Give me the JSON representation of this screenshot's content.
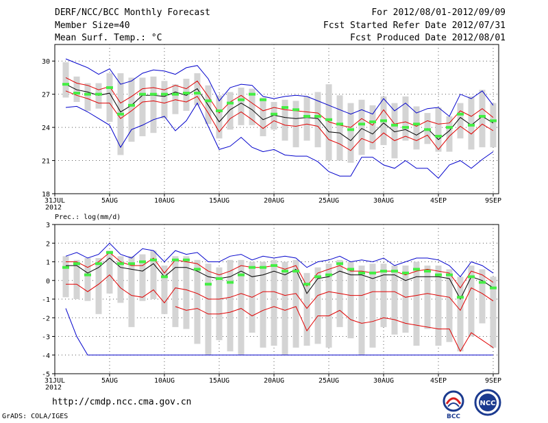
{
  "header": {
    "title": "DERF/NCC/BCC Monthly Forecast",
    "member": "Member Size=40",
    "variable": "Mean Surf. Temp.: °C",
    "period": "For 2012/08/01-2012/09/09",
    "started": "Fcst Started Refer Date 2012/07/31",
    "produced": "Fcst Produced Date 2012/08/01"
  },
  "footer": {
    "url": "http://cmdp.ncc.cma.gov.cn",
    "credit": "GrADS: COLA/IGES"
  },
  "logos": {
    "bcc": "BCC",
    "ncc": "NCC"
  },
  "colors": {
    "ensemble_mean": "#000000",
    "spread": "#e00000",
    "extreme": "#0000cc",
    "box": "#d4d4d4",
    "median": "#44ee44",
    "grid": "#555555"
  },
  "chart_data": [
    {
      "type": "line",
      "title": "Mean Surf. Temp.: °C",
      "xlabel": "",
      "ylabel": "",
      "x_ticks": [
        {
          "day": 0,
          "label": "31JUL",
          "sub": "2012"
        },
        {
          "day": 5,
          "label": "5AUG"
        },
        {
          "day": 10,
          "label": "10AUG"
        },
        {
          "day": 15,
          "label": "15AUG"
        },
        {
          "day": 20,
          "label": "20AUG"
        },
        {
          "day": 25,
          "label": "25AUG"
        },
        {
          "day": 30,
          "label": "30AUG"
        },
        {
          "day": 35,
          "label": "4SEP"
        },
        {
          "day": 40,
          "label": "9SEP"
        }
      ],
      "y_ticks": [
        18,
        21,
        24,
        27,
        30
      ],
      "ylim": [
        18,
        31.5
      ],
      "xlim": [
        0,
        40.5
      ],
      "days": [
        1,
        2,
        3,
        4,
        5,
        6,
        7,
        8,
        9,
        10,
        11,
        12,
        13,
        14,
        15,
        16,
        17,
        18,
        19,
        20,
        21,
        22,
        23,
        24,
        25,
        26,
        27,
        28,
        29,
        30,
        31,
        32,
        33,
        34,
        35,
        36,
        37,
        38,
        39,
        40
      ],
      "series": [
        {
          "name": "Max",
          "color": "#0000cc",
          "values": [
            30.2,
            29.8,
            29.4,
            28.8,
            29.3,
            27.9,
            28.2,
            28.9,
            29.2,
            29.1,
            28.8,
            29.4,
            29.6,
            28.4,
            26.4,
            27.6,
            27.9,
            27.8,
            26.8,
            26.6,
            26.8,
            26.9,
            26.8,
            26.4,
            26.0,
            25.6,
            25.2,
            25.6,
            25.2,
            26.6,
            25.5,
            26.2,
            25.3,
            25.7,
            25.8,
            25.0,
            27.0,
            26.6,
            27.3,
            26.0
          ]
        },
        {
          "name": "Upper",
          "color": "#e00000",
          "values": [
            28.5,
            28.0,
            27.8,
            27.4,
            27.7,
            26.2,
            26.8,
            27.5,
            27.6,
            27.4,
            27.8,
            27.5,
            28.2,
            26.8,
            25.3,
            26.3,
            26.9,
            26.2,
            25.5,
            25.8,
            25.6,
            25.5,
            25.4,
            25.3,
            24.5,
            24.2,
            24.0,
            24.8,
            24.2,
            25.6,
            24.3,
            24.5,
            24.1,
            24.6,
            24.3,
            24.4,
            25.5,
            25.0,
            25.7,
            24.9
          ]
        },
        {
          "name": "Mean",
          "color": "#000000",
          "values": [
            27.9,
            27.4,
            27.2,
            26.9,
            27.1,
            25.4,
            26.0,
            26.9,
            26.9,
            26.8,
            27.2,
            26.9,
            27.5,
            26.0,
            24.5,
            25.6,
            26.2,
            25.6,
            24.7,
            25.1,
            24.9,
            24.8,
            24.9,
            24.8,
            23.6,
            23.5,
            22.8,
            23.9,
            23.4,
            24.4,
            23.6,
            23.8,
            23.3,
            23.9,
            22.9,
            23.7,
            24.9,
            24.2,
            25.0,
            24.4
          ]
        },
        {
          "name": "Lower",
          "color": "#e00000",
          "values": [
            27.3,
            26.9,
            26.6,
            26.2,
            26.2,
            24.8,
            25.5,
            26.3,
            26.4,
            26.2,
            26.5,
            26.3,
            26.8,
            25.3,
            23.6,
            24.8,
            25.4,
            24.7,
            23.9,
            24.6,
            24.2,
            24.1,
            24.3,
            24.1,
            22.9,
            22.5,
            21.9,
            23.0,
            22.6,
            23.5,
            22.8,
            23.2,
            22.8,
            23.3,
            22.0,
            23.2,
            24.1,
            23.4,
            24.3,
            23.7
          ]
        },
        {
          "name": "Min",
          "color": "#0000cc",
          "values": [
            25.8,
            25.9,
            25.4,
            24.8,
            24.2,
            22.2,
            23.8,
            24.2,
            24.7,
            25.0,
            23.7,
            24.6,
            26.2,
            24.1,
            22.0,
            22.3,
            23.1,
            22.2,
            21.8,
            22.0,
            21.5,
            21.4,
            21.4,
            20.9,
            20.0,
            19.6,
            19.6,
            21.3,
            21.3,
            20.6,
            20.3,
            21.0,
            20.3,
            20.3,
            19.4,
            20.6,
            21.0,
            20.3,
            21.1,
            21.8
          ]
        },
        {
          "name": "Median",
          "color": "#44ee44",
          "values": [
            27.9,
            27.1,
            27.0,
            27.0,
            27.6,
            25.2,
            26.0,
            27.0,
            27.0,
            27.0,
            27.0,
            27.1,
            27.1,
            26.4,
            25.5,
            26.2,
            26.5,
            27.0,
            26.5,
            25.2,
            25.8,
            25.6,
            25.0,
            25.0,
            24.7,
            24.3,
            23.8,
            24.3,
            24.5,
            24.6,
            24.2,
            24.0,
            24.3,
            23.8,
            23.2,
            24.0,
            25.2,
            24.2,
            25.0,
            24.6
          ]
        }
      ],
      "box_upper": [
        29.9,
        28.6,
        28.0,
        28.0,
        28.9,
        28.9,
        28.5,
        28.5,
        28.6,
        28.2,
        27.9,
        28.4,
        28.9,
        27.8,
        26.9,
        27.2,
        27.6,
        27.5,
        26.7,
        26.3,
        26.5,
        26.4,
        26.8,
        27.2,
        27.9,
        26.9,
        26.2,
        26.5,
        26.0,
        26.8,
        26.2,
        26.8,
        25.9,
        25.3,
        25.8,
        25.0,
        26.2,
        26.8,
        27.4,
        26.2
      ],
      "box_lower": [
        26.7,
        26.3,
        25.5,
        25.7,
        24.5,
        21.5,
        22.7,
        23.2,
        23.5,
        24.8,
        25.2,
        25.5,
        26.0,
        24.3,
        23.0,
        23.8,
        24.2,
        24.2,
        23.2,
        23.8,
        22.8,
        22.2,
        22.8,
        22.2,
        21.0,
        21.0,
        20.8,
        21.5,
        22.0,
        22.4,
        21.2,
        22.8,
        22.0,
        22.5,
        21.8,
        21.8,
        23.0,
        22.0,
        22.2,
        22.2
      ]
    },
    {
      "type": "line",
      "title": "Prec.: log(mm/d)",
      "xlabel": "",
      "ylabel": "",
      "x_ticks": [
        {
          "day": 0,
          "label": "31JUL",
          "sub": "2012"
        },
        {
          "day": 5,
          "label": "5AUG"
        },
        {
          "day": 10,
          "label": "10AUG"
        },
        {
          "day": 15,
          "label": "15AUG"
        },
        {
          "day": 20,
          "label": "20AUG"
        },
        {
          "day": 25,
          "label": "25AUG"
        },
        {
          "day": 30,
          "label": "30AUG"
        },
        {
          "day": 35,
          "label": "4SEP"
        },
        {
          "day": 40,
          "label": "9SEP"
        }
      ],
      "y_ticks": [
        -5,
        -4,
        -3,
        -2,
        -1,
        0,
        1,
        2,
        3
      ],
      "ylim": [
        -5,
        3
      ],
      "xlim": [
        0,
        40.5
      ],
      "days": [
        1,
        2,
        3,
        4,
        5,
        6,
        7,
        8,
        9,
        10,
        11,
        12,
        13,
        14,
        15,
        16,
        17,
        18,
        19,
        20,
        21,
        22,
        23,
        24,
        25,
        26,
        27,
        28,
        29,
        30,
        31,
        32,
        33,
        34,
        35,
        36,
        37,
        38,
        39,
        40
      ],
      "series": [
        {
          "name": "Max",
          "color": "#0000cc",
          "values": [
            1.3,
            1.5,
            1.2,
            1.4,
            2.0,
            1.4,
            1.2,
            1.7,
            1.6,
            1.0,
            1.6,
            1.4,
            1.5,
            1.0,
            1.0,
            1.3,
            1.4,
            1.1,
            1.3,
            1.2,
            1.3,
            1.2,
            0.7,
            1.0,
            1.1,
            1.3,
            1.0,
            1.1,
            1.0,
            1.2,
            0.8,
            1.0,
            1.2,
            1.2,
            1.1,
            0.8,
            0.2,
            1.0,
            0.8,
            0.4
          ]
        },
        {
          "name": "Upper",
          "color": "#e00000",
          "values": [
            1.0,
            1.0,
            0.7,
            1.0,
            1.5,
            1.0,
            0.8,
            0.8,
            1.2,
            0.4,
            1.1,
            1.0,
            0.9,
            0.5,
            0.3,
            0.5,
            0.8,
            0.7,
            0.7,
            0.8,
            0.6,
            0.8,
            -0.3,
            0.4,
            0.6,
            0.8,
            0.5,
            0.5,
            0.4,
            0.5,
            0.5,
            0.3,
            0.5,
            0.6,
            0.5,
            0.4,
            -0.4,
            0.5,
            0.3,
            -0.1
          ]
        },
        {
          "name": "Mean",
          "color": "#000000",
          "values": [
            0.8,
            0.8,
            0.4,
            0.7,
            1.2,
            0.7,
            0.6,
            0.5,
            0.9,
            0.2,
            0.7,
            0.7,
            0.5,
            0.2,
            0.1,
            0.2,
            0.5,
            0.2,
            0.3,
            0.5,
            0.3,
            0.6,
            -0.7,
            0.1,
            0.2,
            0.5,
            0.3,
            0.3,
            0.1,
            0.3,
            0.3,
            0.0,
            0.2,
            0.2,
            0.2,
            0.1,
            -1.0,
            0.2,
            0.0,
            -0.4
          ]
        },
        {
          "name": "Lower",
          "color": "#e00000",
          "values": [
            -0.2,
            -0.2,
            -0.6,
            -0.2,
            0.3,
            -0.4,
            -0.8,
            -0.9,
            -0.5,
            -1.2,
            -0.4,
            -0.5,
            -0.7,
            -1.0,
            -1.0,
            -0.9,
            -0.7,
            -0.9,
            -0.6,
            -0.6,
            -0.8,
            -0.7,
            -1.5,
            -0.8,
            -0.6,
            -0.7,
            -0.8,
            -0.8,
            -0.6,
            -0.6,
            -0.6,
            -0.9,
            -0.8,
            -0.7,
            -0.8,
            -0.9,
            -1.6,
            -0.4,
            -0.7,
            -1.1
          ]
        },
        {
          "name": "Lower2",
          "color": "#e00000",
          "values": [
            null,
            null,
            null,
            null,
            null,
            null,
            null,
            null,
            null,
            null,
            -1.4,
            -1.6,
            -1.5,
            -1.8,
            -1.8,
            -1.7,
            -1.5,
            -1.9,
            -1.6,
            -1.4,
            -1.6,
            -1.4,
            -2.7,
            -1.9,
            -1.9,
            -1.6,
            -2.1,
            -2.3,
            -2.2,
            -2.0,
            -2.1,
            -2.3,
            -2.4,
            -2.5,
            -2.6,
            -2.6,
            -3.8,
            -2.8,
            -3.2,
            -3.6
          ]
        },
        {
          "name": "Min",
          "color": "#0000cc",
          "values": [
            -1.5,
            -3.0,
            -4.0,
            -4.0,
            -4.0,
            -4.0,
            -4.0,
            -4.0,
            -4.0,
            -4.0,
            -4.0,
            -4.0,
            -4.0,
            -4.0,
            -4.0,
            -4.0,
            -4.0,
            -4.0,
            -4.0,
            -4.0,
            -4.0,
            -4.0,
            -4.0,
            -4.0,
            -4.0,
            -4.0,
            -4.0,
            -4.0,
            -4.0,
            -4.0,
            -4.0,
            -4.0,
            -4.0,
            -4.0,
            -4.0,
            -4.0,
            -4.0,
            -4.0,
            -4.0,
            -4.0
          ]
        },
        {
          "name": "Median",
          "color": "#44ee44",
          "values": [
            0.7,
            0.9,
            0.3,
            0.9,
            1.5,
            0.9,
            0.9,
            1.0,
            1.1,
            0.2,
            1.1,
            1.1,
            0.6,
            -0.2,
            0.1,
            -0.1,
            0.3,
            0.7,
            0.7,
            0.8,
            0.5,
            0.5,
            -0.2,
            0.2,
            0.3,
            0.9,
            0.6,
            0.4,
            0.4,
            0.5,
            0.5,
            0.4,
            0.6,
            0.5,
            0.3,
            0.3,
            -0.9,
            0.2,
            -0.1,
            -0.4
          ]
        }
      ],
      "box_upper": [
        1.3,
        1.1,
        1.2,
        1.2,
        1.6,
        1.3,
        1.3,
        1.4,
        1.6,
        0.8,
        1.3,
        1.3,
        1.1,
        0.9,
        0.7,
        1.1,
        1.1,
        1.0,
        1.0,
        1.1,
        1.0,
        1.1,
        0.4,
        0.7,
        0.9,
        1.1,
        1.0,
        0.8,
        0.9,
        0.9,
        0.8,
        0.8,
        1.0,
        0.8,
        0.8,
        0.6,
        0.2,
        0.8,
        0.6,
        0.2
      ],
      "box_lower": [
        -0.9,
        -1.0,
        -1.1,
        -1.8,
        -0.7,
        -1.2,
        -2.5,
        -1.1,
        -1.0,
        -1.8,
        -2.5,
        -2.6,
        -3.4,
        -4.0,
        -3.2,
        -3.8,
        -4.0,
        -2.8,
        -3.6,
        -3.5,
        -4.0,
        -3.6,
        -3.5,
        -3.4,
        -3.6,
        -2.5,
        -3.1,
        -4.0,
        -3.6,
        -2.5,
        -2.9,
        -2.8,
        -3.5,
        -2.6,
        -3.5,
        -3.3,
        -3.8,
        -3.0,
        -2.3,
        -3.6
      ]
    }
  ]
}
